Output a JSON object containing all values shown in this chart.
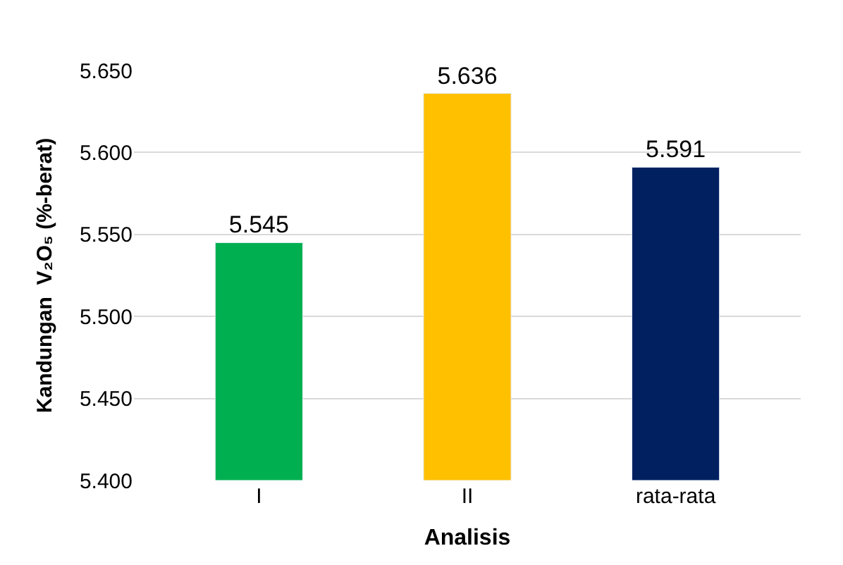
{
  "chart_data": {
    "type": "bar",
    "xlabel": "Analisis",
    "ylabel": "Kandungan  V₂O₅ (%-berat)",
    "categories": [
      "I",
      "II",
      "rata-rata"
    ],
    "values": [
      5.545,
      5.636,
      5.591
    ],
    "colors": [
      "#00b050",
      "#ffc000",
      "#002060"
    ],
    "data_labels": true,
    "ylim": [
      5.4,
      5.65
    ],
    "yticks": [
      {
        "value": 5.4,
        "label": "5.400"
      },
      {
        "value": 5.45,
        "label": "5.450"
      },
      {
        "value": 5.5,
        "label": "5.500"
      },
      {
        "value": 5.55,
        "label": "5.550"
      },
      {
        "value": 5.6,
        "label": "5.600"
      },
      {
        "value": 5.65,
        "label": "5.650"
      }
    ],
    "grid": "y"
  }
}
